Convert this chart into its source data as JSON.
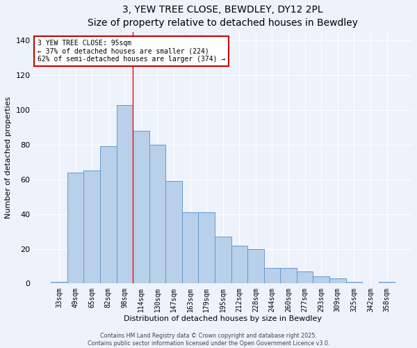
{
  "title": "3, YEW TREE CLOSE, BEWDLEY, DY12 2PL",
  "subtitle": "Size of property relative to detached houses in Bewdley",
  "xlabel": "Distribution of detached houses by size in Bewdley",
  "ylabel": "Number of detached properties",
  "categories": [
    "33sqm",
    "49sqm",
    "65sqm",
    "82sqm",
    "98sqm",
    "114sqm",
    "130sqm",
    "147sqm",
    "163sqm",
    "179sqm",
    "195sqm",
    "212sqm",
    "228sqm",
    "244sqm",
    "260sqm",
    "277sqm",
    "293sqm",
    "309sqm",
    "325sqm",
    "342sqm",
    "358sqm"
  ],
  "values": [
    1,
    64,
    65,
    79,
    103,
    88,
    80,
    59,
    41,
    41,
    27,
    22,
    20,
    9,
    9,
    7,
    4,
    3,
    1,
    0,
    1
  ],
  "bar_color": "#b8d0ea",
  "bar_edge_color": "#6699cc",
  "background_color": "#eef2fb",
  "grid_color": "#ffffff",
  "red_line_x": 4.5,
  "annotation_text": "3 YEW TREE CLOSE: 95sqm\n← 37% of detached houses are smaller (224)\n62% of semi-detached houses are larger (374) →",
  "annotation_box_color": "#ffffff",
  "annotation_box_edge": "#cc0000",
  "footer_line1": "Contains HM Land Registry data © Crown copyright and database right 2025.",
  "footer_line2": "Contains public sector information licensed under the Open Government Licence v3.0.",
  "ylim": [
    0,
    145
  ],
  "yticks": [
    0,
    20,
    40,
    60,
    80,
    100,
    120,
    140
  ],
  "title_fontsize": 10,
  "subtitle_fontsize": 9,
  "ylabel_fontsize": 8,
  "xlabel_fontsize": 8,
  "tick_fontsize": 7,
  "annot_fontsize": 7
}
